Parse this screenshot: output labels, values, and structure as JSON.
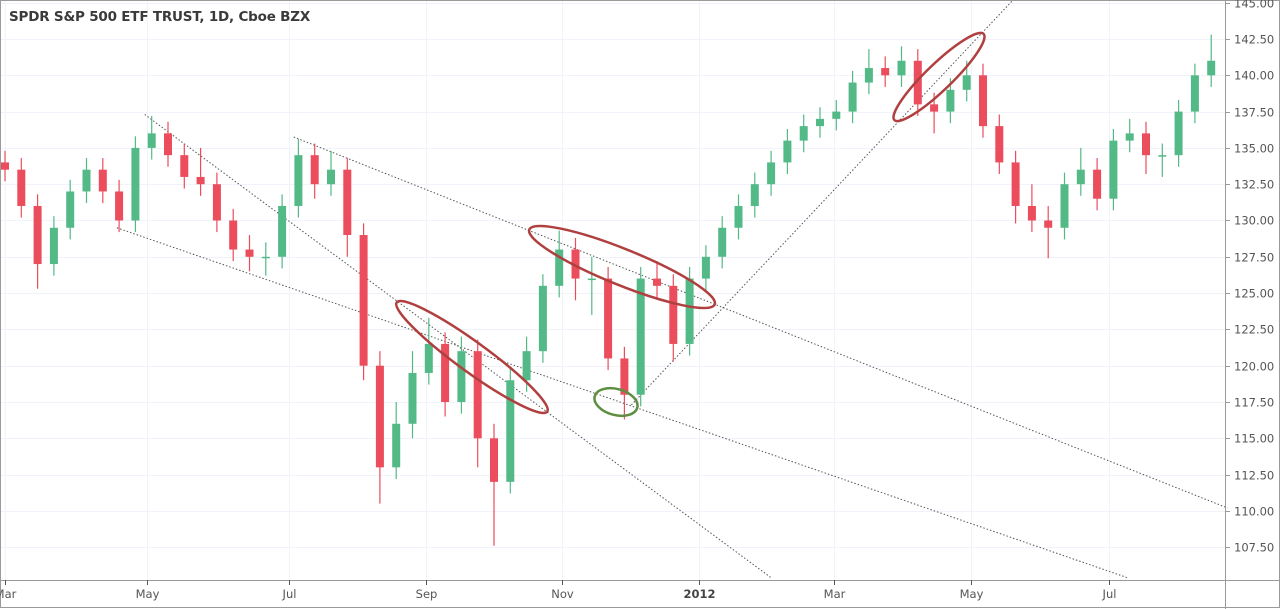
{
  "header": {
    "title": "SPDR S&P 500 ETF TRUST, 1D, Cboe BZX"
  },
  "colors": {
    "up": "#53b987",
    "down": "#eb4d5c",
    "grid": "#f0f3fa",
    "axis": "#9a9a9a",
    "annotation_red": "#b0403f",
    "annotation_green": "#5e8e41",
    "trendline": "#555555"
  },
  "chart_data": {
    "type": "candlestick",
    "title": "SPDR S&P 500 ETF TRUST, 1D, Cboe BZX",
    "start_date": "2011-03-01",
    "candle_interval_days": 7,
    "ylim": [
      105.5,
      145
    ],
    "grid": true,
    "y_ticks": [
      "107.50",
      "110.00",
      "112.50",
      "115.00",
      "117.50",
      "120.00",
      "122.50",
      "125.00",
      "127.50",
      "130.00",
      "132.50",
      "135.00",
      "137.50",
      "140.00",
      "142.50",
      "145.00"
    ],
    "x_ticks": [
      {
        "label": "Mar",
        "date": "2011-03-01"
      },
      {
        "label": "May",
        "date": "2011-05-01"
      },
      {
        "label": "Jul",
        "date": "2011-07-01"
      },
      {
        "label": "Sep",
        "date": "2011-08-29"
      },
      {
        "label": "Nov",
        "date": "2011-10-26"
      },
      {
        "label": "2012",
        "date": "2011-12-24"
      },
      {
        "label": "Mar",
        "date": "2012-02-20"
      },
      {
        "label": "May",
        "date": "2012-04-19"
      },
      {
        "label": "Jul",
        "date": "2012-06-17"
      }
    ],
    "candles": [
      [
        134,
        134.8,
        132.7,
        133.5
      ],
      [
        133.5,
        134.3,
        130.2,
        131
      ],
      [
        131,
        131.8,
        125.3,
        127
      ],
      [
        127,
        130.3,
        126.2,
        129.5
      ],
      [
        129.5,
        132.8,
        128.7,
        132
      ],
      [
        132,
        134.3,
        131.2,
        133.5
      ],
      [
        133.5,
        134.3,
        131.2,
        132
      ],
      [
        132,
        132.8,
        129.2,
        130
      ],
      [
        130,
        135.8,
        129.2,
        135
      ],
      [
        135,
        137.2,
        134.2,
        136
      ],
      [
        136,
        136.8,
        133.7,
        134.5
      ],
      [
        134.5,
        135.3,
        132.2,
        133
      ],
      [
        133,
        135,
        131.7,
        132.5
      ],
      [
        132.5,
        133.3,
        129.2,
        130
      ],
      [
        130,
        130.8,
        127.2,
        128
      ],
      [
        128,
        129,
        126.5,
        127.5
      ],
      [
        127.5,
        128.5,
        126.2,
        127.5
      ],
      [
        127.5,
        131.8,
        126.7,
        131
      ],
      [
        131,
        135.6,
        130.2,
        134.5
      ],
      [
        134.5,
        135.3,
        131.5,
        132.5
      ],
      [
        132.5,
        134.8,
        131.7,
        133.5
      ],
      [
        133.5,
        134.3,
        127.5,
        129
      ],
      [
        129,
        129.8,
        119,
        120
      ],
      [
        120,
        121,
        110.5,
        113
      ],
      [
        113,
        117.5,
        112.2,
        116
      ],
      [
        116,
        121,
        115,
        119.5
      ],
      [
        119.5,
        123.3,
        118.7,
        121.5
      ],
      [
        121.5,
        122.3,
        116.5,
        117.5
      ],
      [
        117.5,
        122,
        116.7,
        121
      ],
      [
        121,
        121.8,
        113,
        115
      ],
      [
        115,
        116,
        107.6,
        112
      ],
      [
        112,
        119.8,
        111.2,
        119
      ],
      [
        119,
        122,
        118.2,
        121
      ],
      [
        121,
        126.3,
        120.2,
        125.5
      ],
      [
        125.5,
        129.3,
        124.7,
        128
      ],
      [
        128,
        128.8,
        124.5,
        126
      ],
      [
        126,
        127.5,
        123.5,
        126
      ],
      [
        126,
        126.8,
        119.7,
        120.5
      ],
      [
        120.5,
        121.3,
        116.3,
        118
      ],
      [
        118,
        126.8,
        117.2,
        126
      ],
      [
        126,
        127.2,
        124.7,
        125.5
      ],
      [
        125.5,
        126.3,
        120.3,
        121.5
      ],
      [
        121.5,
        126.8,
        120.7,
        126
      ],
      [
        126,
        128.3,
        125.2,
        127.5
      ],
      [
        127.5,
        130.3,
        126.7,
        129.5
      ],
      [
        129.5,
        131.8,
        128.7,
        131
      ],
      [
        131,
        133.3,
        130.2,
        132.5
      ],
      [
        132.5,
        134.8,
        131.7,
        134
      ],
      [
        134,
        136.3,
        133.2,
        135.5
      ],
      [
        135.5,
        137.3,
        134.7,
        136.5
      ],
      [
        136.5,
        137.8,
        135.7,
        137
      ],
      [
        137,
        138.3,
        136.2,
        137.5
      ],
      [
        137.5,
        140.3,
        136.7,
        139.5
      ],
      [
        139.5,
        141.8,
        138.7,
        140.5
      ],
      [
        140.5,
        141.3,
        139.2,
        140
      ],
      [
        140,
        142,
        139.2,
        141
      ],
      [
        141,
        141.8,
        137.2,
        138
      ],
      [
        138,
        138.8,
        136,
        137.5
      ],
      [
        137.5,
        139.8,
        136.7,
        139
      ],
      [
        139,
        141,
        138.2,
        140
      ],
      [
        140,
        140.8,
        135.7,
        136.5
      ],
      [
        136.5,
        137.3,
        133.2,
        134
      ],
      [
        134,
        134.8,
        129.8,
        131
      ],
      [
        131,
        132.5,
        129.2,
        130
      ],
      [
        130,
        131,
        127.4,
        129.5
      ],
      [
        129.5,
        133.3,
        128.7,
        132.5
      ],
      [
        132.5,
        135,
        131.7,
        133.5
      ],
      [
        133.5,
        134.3,
        130.7,
        131.5
      ],
      [
        131.5,
        136.3,
        130.7,
        135.5
      ],
      [
        135.5,
        137,
        134.7,
        136
      ],
      [
        136,
        136.8,
        133.2,
        134.5
      ],
      [
        134.5,
        135.3,
        133,
        134.5
      ],
      [
        134.5,
        138.3,
        133.7,
        137.5
      ],
      [
        137.5,
        140.8,
        136.7,
        140
      ],
      [
        140,
        142.8,
        139.2,
        141
      ]
    ],
    "trendlines": [
      {
        "from": {
          "date": "2011-04-30",
          "price": 137.3
        },
        "to": {
          "date": "2012-01-24",
          "price": 105.4
        }
      },
      {
        "from": {
          "date": "2011-04-18",
          "price": 129.5
        },
        "to": {
          "date": "2012-06-25",
          "price": 105.4
        }
      },
      {
        "from": {
          "date": "2011-07-03",
          "price": 135.75
        },
        "to": {
          "date": "2012-08-07",
          "price": 110.2
        }
      },
      {
        "from": {
          "date": "2011-11-25",
          "price": 117.3
        },
        "to": {
          "date": "2012-05-07",
          "price": 145.2
        }
      }
    ]
  }
}
